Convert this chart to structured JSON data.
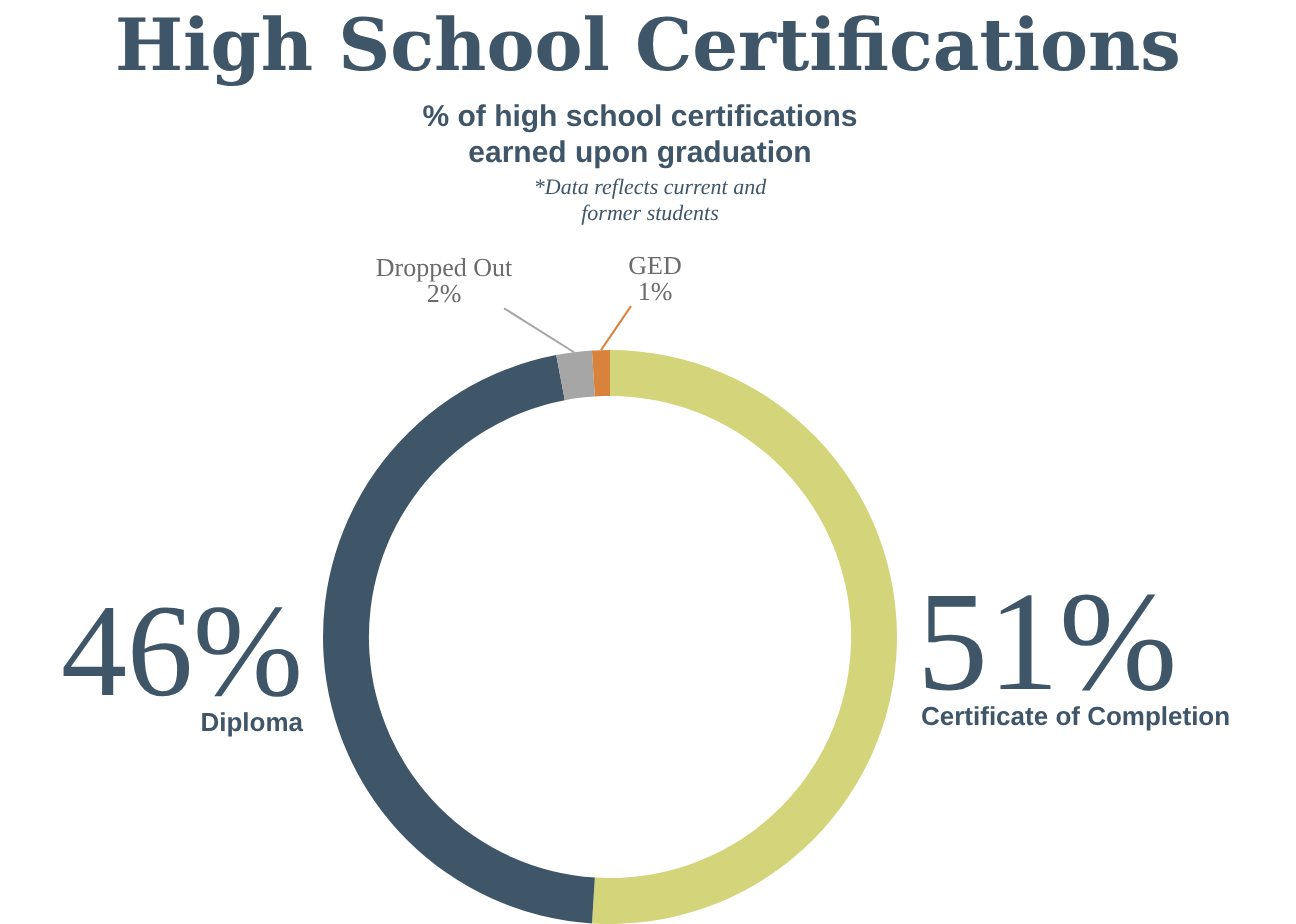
{
  "chart_data": {
    "type": "donut",
    "title": "High School Certifications",
    "subtitle": "% of high school certifications earned upon graduation",
    "annotations": [
      "*Data reflects current and former students"
    ],
    "categories": [
      "Certificate of Completion",
      "Diploma",
      "Dropped Out",
      "GED"
    ],
    "values": [
      51,
      46,
      2,
      1
    ],
    "colors": [
      "#d4d57a",
      "#3f5568",
      "#a6a6a6",
      "#d9823b"
    ],
    "value_labels": [
      "51%",
      "46%",
      "2%",
      "1%"
    ],
    "legend": false
  }
}
